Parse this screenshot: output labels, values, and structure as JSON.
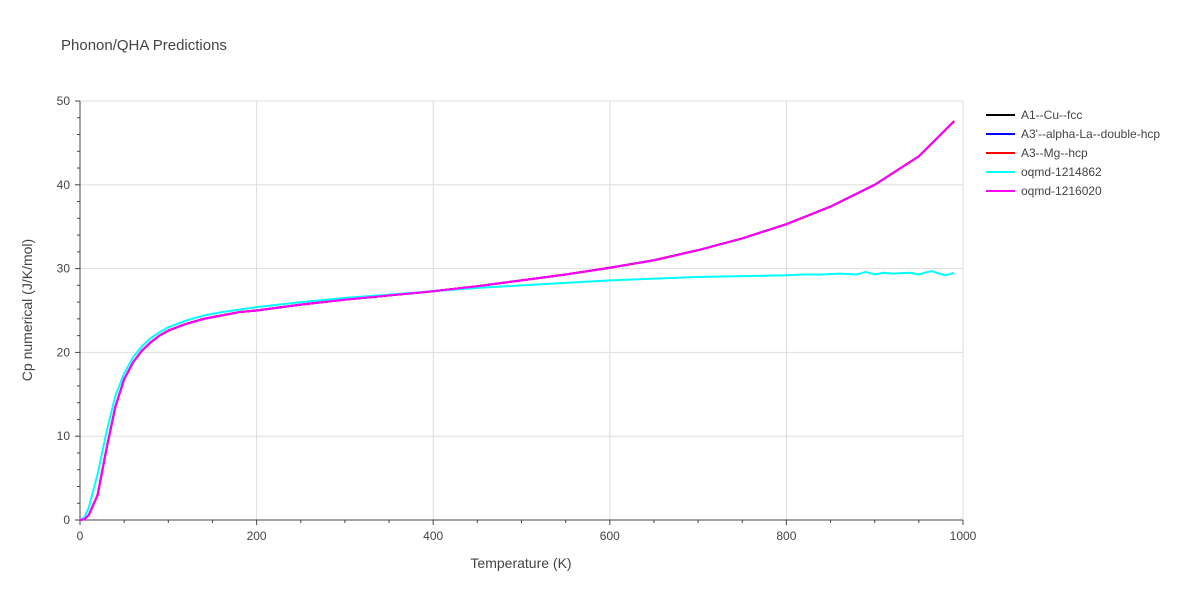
{
  "chart_data": {
    "type": "line",
    "title": "Phonon/QHA Predictions",
    "xlabel": "Temperature (K)",
    "ylabel": "Cp numerical (J/K/mol)",
    "xlim": [
      0,
      1000
    ],
    "ylim": [
      0,
      50
    ],
    "xticks": [
      0,
      200,
      400,
      600,
      800,
      1000
    ],
    "yticks": [
      0,
      10,
      20,
      30,
      40,
      50
    ],
    "grid": true,
    "legend_position": "top-right",
    "series": [
      {
        "name": "A1--Cu--fcc",
        "color": "#000000",
        "x": [
          0,
          5,
          10,
          20,
          30,
          40,
          50,
          60,
          70,
          80,
          90,
          100,
          120,
          140,
          160,
          180,
          200,
          250,
          300,
          350,
          400,
          450,
          500,
          550,
          600,
          650,
          700,
          750,
          800,
          850,
          900,
          950,
          990
        ],
        "y": [
          0,
          0.1,
          0.6,
          3.0,
          8.5,
          13.5,
          16.8,
          18.8,
          20.2,
          21.2,
          22.0,
          22.6,
          23.4,
          24.0,
          24.4,
          24.8,
          25.0,
          25.7,
          26.3,
          26.8,
          27.3,
          27.9,
          28.6,
          29.3,
          30.1,
          31.0,
          32.2,
          33.6,
          35.3,
          37.4,
          40.0,
          43.4,
          47.6
        ]
      },
      {
        "name": "A3'--alpha-La--double-hcp",
        "color": "#0000ff",
        "x": [
          0,
          5,
          10,
          20,
          30,
          40,
          50,
          60,
          70,
          80,
          90,
          100,
          120,
          140,
          160,
          180,
          200,
          250,
          300,
          350,
          400,
          450,
          500,
          550,
          600,
          650,
          700,
          750,
          800,
          850,
          900,
          950,
          990
        ],
        "y": [
          0,
          0.1,
          0.6,
          3.0,
          8.5,
          13.5,
          16.8,
          18.8,
          20.2,
          21.2,
          22.0,
          22.6,
          23.4,
          24.0,
          24.4,
          24.8,
          25.0,
          25.7,
          26.3,
          26.8,
          27.3,
          27.9,
          28.6,
          29.3,
          30.1,
          31.0,
          32.2,
          33.6,
          35.3,
          37.4,
          40.0,
          43.4,
          47.6
        ]
      },
      {
        "name": "A3--Mg--hcp",
        "color": "#ff0000",
        "x": [
          0,
          5,
          10,
          20,
          30,
          40,
          50,
          60,
          70,
          80,
          90,
          100,
          120,
          140,
          160,
          180,
          200,
          250,
          300,
          350,
          400,
          450,
          500,
          550,
          600,
          650,
          700,
          750,
          800,
          850,
          900,
          950,
          990
        ],
        "y": [
          0,
          0.1,
          0.6,
          3.0,
          8.5,
          13.5,
          16.8,
          18.8,
          20.2,
          21.2,
          22.0,
          22.6,
          23.4,
          24.0,
          24.4,
          24.8,
          25.0,
          25.7,
          26.3,
          26.8,
          27.3,
          27.9,
          28.6,
          29.3,
          30.1,
          31.0,
          32.2,
          33.6,
          35.3,
          37.4,
          40.0,
          43.4,
          47.6
        ]
      },
      {
        "name": "oqmd-1214862",
        "color": "#00ffff",
        "x": [
          0,
          5,
          10,
          20,
          30,
          40,
          50,
          60,
          70,
          80,
          90,
          100,
          120,
          140,
          160,
          180,
          200,
          250,
          300,
          350,
          400,
          450,
          500,
          550,
          600,
          650,
          700,
          750,
          800,
          820,
          840,
          860,
          880,
          890,
          900,
          910,
          920,
          940,
          950,
          960,
          965,
          970,
          980,
          990
        ],
        "y": [
          0,
          0.3,
          1.5,
          5.5,
          10.5,
          14.8,
          17.5,
          19.4,
          20.7,
          21.7,
          22.4,
          23.0,
          23.8,
          24.4,
          24.8,
          25.1,
          25.4,
          26.0,
          26.5,
          26.9,
          27.3,
          27.7,
          28.0,
          28.3,
          28.6,
          28.8,
          29.0,
          29.1,
          29.2,
          29.3,
          29.3,
          29.4,
          29.3,
          29.6,
          29.3,
          29.5,
          29.4,
          29.5,
          29.3,
          29.6,
          29.7,
          29.5,
          29.2,
          29.5
        ]
      },
      {
        "name": "oqmd-1216020",
        "color": "#ff00ff",
        "x": [
          0,
          5,
          10,
          20,
          30,
          40,
          50,
          60,
          70,
          80,
          90,
          100,
          120,
          140,
          160,
          180,
          200,
          250,
          300,
          350,
          400,
          450,
          500,
          550,
          600,
          650,
          700,
          750,
          800,
          850,
          900,
          950,
          990
        ],
        "y": [
          0,
          0.1,
          0.6,
          3.0,
          8.5,
          13.5,
          16.8,
          18.8,
          20.2,
          21.2,
          22.0,
          22.6,
          23.4,
          24.0,
          24.4,
          24.8,
          25.0,
          25.7,
          26.3,
          26.8,
          27.3,
          27.9,
          28.6,
          29.3,
          30.1,
          31.0,
          32.2,
          33.6,
          35.3,
          37.4,
          40.0,
          43.4,
          47.6
        ]
      }
    ]
  }
}
